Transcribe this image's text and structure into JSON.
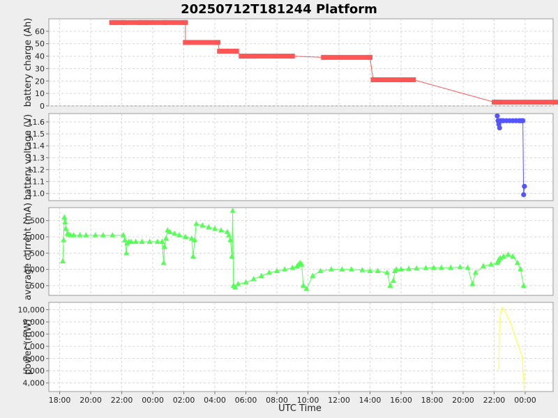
{
  "chart_data": {
    "title": "20250712T181244 Platform",
    "xlabel": "UTC Time",
    "x_ticks": [
      "18:00",
      "20:00",
      "22:00",
      "00:00",
      "02:00",
      "04:00",
      "06:00",
      "08:00",
      "10:00",
      "12:00",
      "14:00",
      "16:00",
      "18:00",
      "20:00",
      "22:00",
      "00:00"
    ],
    "x_range_hours": [
      17.3,
      49.8
    ],
    "colors": {
      "charge": "#ff5555",
      "voltage": "#5555ff",
      "current": "#55ff55",
      "power": "#ffff55"
    },
    "panels": [
      {
        "type": "line",
        "ylabel": "battery charge (Ah)",
        "ylim": [
          0,
          70
        ],
        "y_ticks": [
          "0",
          "10",
          "20",
          "30",
          "40",
          "50",
          "60"
        ],
        "y_tick_values": [
          0,
          10,
          20,
          30,
          40,
          50,
          60
        ],
        "marker": "square",
        "series": [
          {
            "x": [
              21.35,
              21.6,
              22.1,
              23.2,
              23.6,
              24.8,
              26.1,
              26.1,
              28.2,
              28.3,
              28.8,
              29.4,
              29.7,
              30.5,
              33,
              35,
              38.0,
              38.2,
              40.5,
              40.8,
              46,
              46.3,
              52.8,
              53,
              55,
              56.9
            ],
            "y": [
              67,
              67,
              67,
              67,
              67,
              67,
              67,
              51,
              51,
              44,
              44,
              44,
              40,
              40,
              40,
              39,
              39,
              21,
              21,
              21,
              3,
              3,
              3,
              2,
              1,
              1
            ]
          }
        ]
      },
      {
        "type": "scatter",
        "ylabel": "battery voltage (V)",
        "ylim": [
          10.94,
          11.67
        ],
        "y_ticks": [
          "11.0",
          "11.1",
          "11.2",
          "11.3",
          "11.4",
          "11.5",
          "11.6"
        ],
        "y_tick_values": [
          11.0,
          11.1,
          11.2,
          11.3,
          11.4,
          11.5,
          11.6
        ],
        "marker": "circle",
        "series": [
          {
            "x": [
              46.2,
              46.25,
              46.3,
              46.35,
              46.4,
              46.5,
              46.6,
              46.8,
              47.0,
              47.2,
              47.4,
              47.6,
              47.7,
              47.8,
              47.85,
              47.9,
              47.95
            ],
            "y": [
              11.65,
              11.61,
              11.58,
              11.55,
              11.61,
              11.61,
              11.61,
              11.61,
              11.61,
              11.61,
              11.61,
              11.61,
              11.61,
              11.61,
              11.61,
              10.99,
              11.06
            ]
          }
        ]
      },
      {
        "type": "line",
        "ylabel": "average current (mA)",
        "ylim": [
          200,
          2900
        ],
        "y_ticks": [
          "500",
          "1,000",
          "1,500",
          "2,000",
          "2,500"
        ],
        "y_tick_values": [
          500,
          1000,
          1500,
          2000,
          2500
        ],
        "marker": "triangle",
        "series": [
          {
            "x": [
              18.2,
              18.25,
              18.3,
              18.35,
              18.4,
              18.5,
              18.6,
              18.7,
              18.9,
              19.3,
              19.7,
              20.3,
              20.8,
              21.4,
              22.1,
              22.2,
              22.3,
              22.35,
              22.45,
              22.6,
              22.9,
              23.3,
              23.8,
              24.3,
              24.6,
              24.7,
              24.75,
              24.85,
              24.95,
              25.1,
              25.4,
              25.7,
              26.1,
              26.5,
              26.6,
              26.7,
              26.8,
              27.2,
              27.6,
              28.0,
              28.4,
              28.8,
              28.9,
              29.0,
              29.1,
              29.15,
              29.2,
              29.3,
              29.5,
              30.0,
              30.5,
              31.0,
              31.5,
              32.0,
              32.5,
              33.0,
              33.3,
              33.4,
              33.5,
              33.6,
              33.7,
              33.9,
              34.3,
              34.8,
              35.5,
              36.2,
              36.8,
              37.5,
              38.0,
              38.5,
              39.1,
              39.3,
              39.5,
              39.6,
              39.7,
              40.0,
              40.5,
              41.0,
              41.6,
              42.1,
              42.6,
              43.2,
              43.8,
              44.3,
              44.6,
              44.8,
              45.3,
              45.8,
              46.2,
              46.25,
              46.3,
              46.4,
              46.6,
              46.9,
              47.2,
              47.5,
              47.7,
              47.9
            ],
            "y": [
              1250,
              1900,
              2600,
              2450,
              2250,
              2100,
              2070,
              2050,
              2050,
              2050,
              2050,
              2050,
              2050,
              2050,
              2050,
              1900,
              1500,
              1800,
              1850,
              1850,
              1850,
              1850,
              1850,
              1850,
              1850,
              1200,
              1700,
              1950,
              2200,
              2150,
              2100,
              2050,
              2000,
              1950,
              1400,
              1900,
              2400,
              2350,
              2300,
              2250,
              2200,
              2150,
              2050,
              1900,
              1400,
              2800,
              500,
              450,
              550,
              600,
              700,
              800,
              900,
              950,
              1000,
              1050,
              1100,
              1150,
              1200,
              1150,
              500,
              400,
              800,
              950,
              1000,
              1000,
              1000,
              980,
              950,
              950,
              900,
              500,
              650,
              950,
              1000,
              1000,
              1020,
              1030,
              1040,
              1050,
              1050,
              1050,
              1070,
              1050,
              550,
              900,
              1100,
              1150,
              1200,
              1250,
              1300,
              1350,
              1400,
              1450,
              1400,
              1200,
              1000,
              500
            ]
          }
        ]
      },
      {
        "type": "line",
        "ylabel": "power (mW)",
        "ylim": [
          3300,
          10600
        ],
        "y_ticks": [
          "4,000",
          "5,000",
          "6,000",
          "7,000",
          "8,000",
          "9,000",
          "10,000"
        ],
        "y_tick_values": [
          4000,
          5000,
          6000,
          7000,
          8000,
          9000,
          10000
        ],
        "marker": "none",
        "series": [
          {
            "x": [
              46.3,
              46.35,
              46.5,
              46.8,
              47.1,
              47.4,
              47.8,
              47.95
            ],
            "y": [
              5100,
              9200,
              10200,
              9600,
              8800,
              7600,
              6200,
              3300
            ]
          }
        ]
      }
    ]
  }
}
